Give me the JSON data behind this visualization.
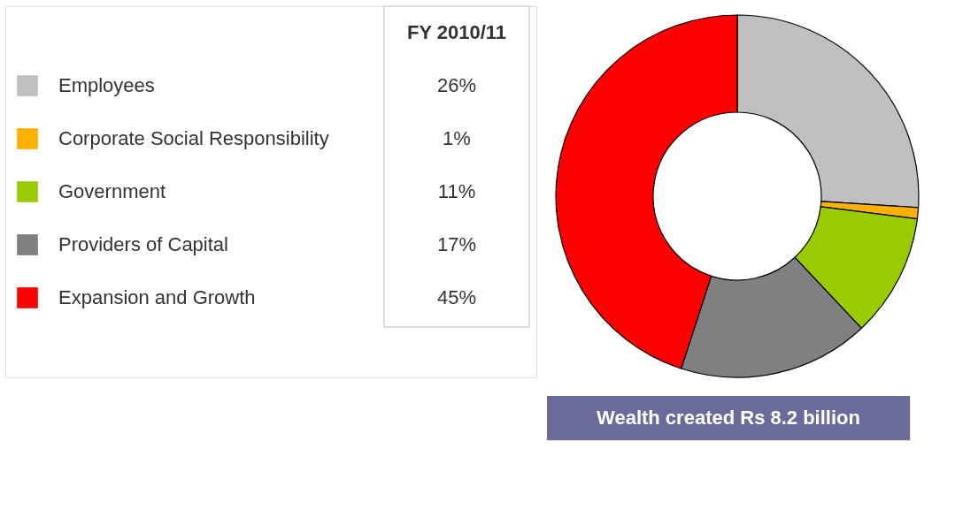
{
  "chart_data": {
    "type": "donut",
    "categories": [
      "Employees",
      "Corporate Social Responsibility",
      "Government",
      "Providers of Capital",
      "Expansion and Growth"
    ],
    "values": [
      26,
      1,
      11,
      17,
      45
    ],
    "value_labels": [
      "26%",
      "1%",
      "11%",
      "17%",
      "45%"
    ],
    "colors": [
      "#c0c0c0",
      "#ffb000",
      "#99cc00",
      "#808080",
      "#ff0000"
    ],
    "legend": "left",
    "legend_title": "FY 2010/11",
    "annotations": [
      "Wealth created Rs 8.2 billion"
    ]
  }
}
